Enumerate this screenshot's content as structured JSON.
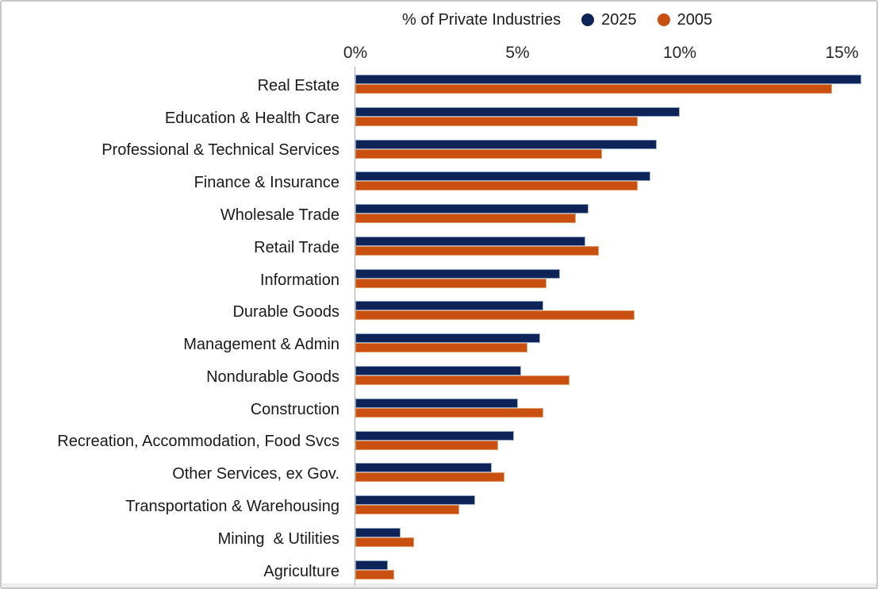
{
  "header": {
    "title": "% of Private Industries",
    "legend": [
      {
        "label": "2025",
        "color": "#0e2458"
      },
      {
        "label": "2005",
        "color": "#c95010"
      }
    ]
  },
  "axis": {
    "tick_labels": [
      "0%",
      "5%",
      "10%",
      "15%"
    ],
    "tick_values": [
      0,
      5,
      10,
      15
    ]
  },
  "chart_data": {
    "type": "bar",
    "orientation": "horizontal",
    "title": "% of Private Industries",
    "xlabel": "% of Private Industries",
    "ylabel": "",
    "xlim": [
      0,
      16
    ],
    "xticks": [
      0,
      5,
      10,
      15
    ],
    "grid": false,
    "legend_position": "top",
    "categories": [
      "Real Estate",
      "Education & Health Care",
      "Professional & Technical Services",
      "Finance & Insurance",
      "Wholesale Trade",
      "Retail Trade",
      "Information",
      "Durable Goods",
      "Management & Admin",
      "Nondurable Goods",
      "Construction",
      "Recreation, Accommodation, Food Svcs",
      "Other Services, ex Gov.",
      "Transportation & Warehousing",
      "Mining  & Utilities",
      "Agriculture"
    ],
    "series": [
      {
        "name": "2025",
        "color": "#0e2458",
        "border_color": "#8fa6c9",
        "values": [
          15.6,
          10.0,
          9.3,
          9.1,
          7.2,
          7.1,
          6.3,
          5.8,
          5.7,
          5.1,
          5.0,
          4.9,
          4.2,
          3.7,
          1.4,
          1.0
        ]
      },
      {
        "name": "2005",
        "color": "#c95010",
        "border_color": "#e09a64",
        "values": [
          14.7,
          8.7,
          7.6,
          8.7,
          6.8,
          7.5,
          5.9,
          8.6,
          5.3,
          6.6,
          5.8,
          4.4,
          4.6,
          3.2,
          1.8,
          1.2
        ]
      }
    ]
  },
  "colors": {
    "axis_line": "#a6a6a6",
    "text": "#1c1c1c",
    "background": "#ffffff",
    "frame_border": "#c8c8c8",
    "bottom_strip": "#ececeb"
  }
}
